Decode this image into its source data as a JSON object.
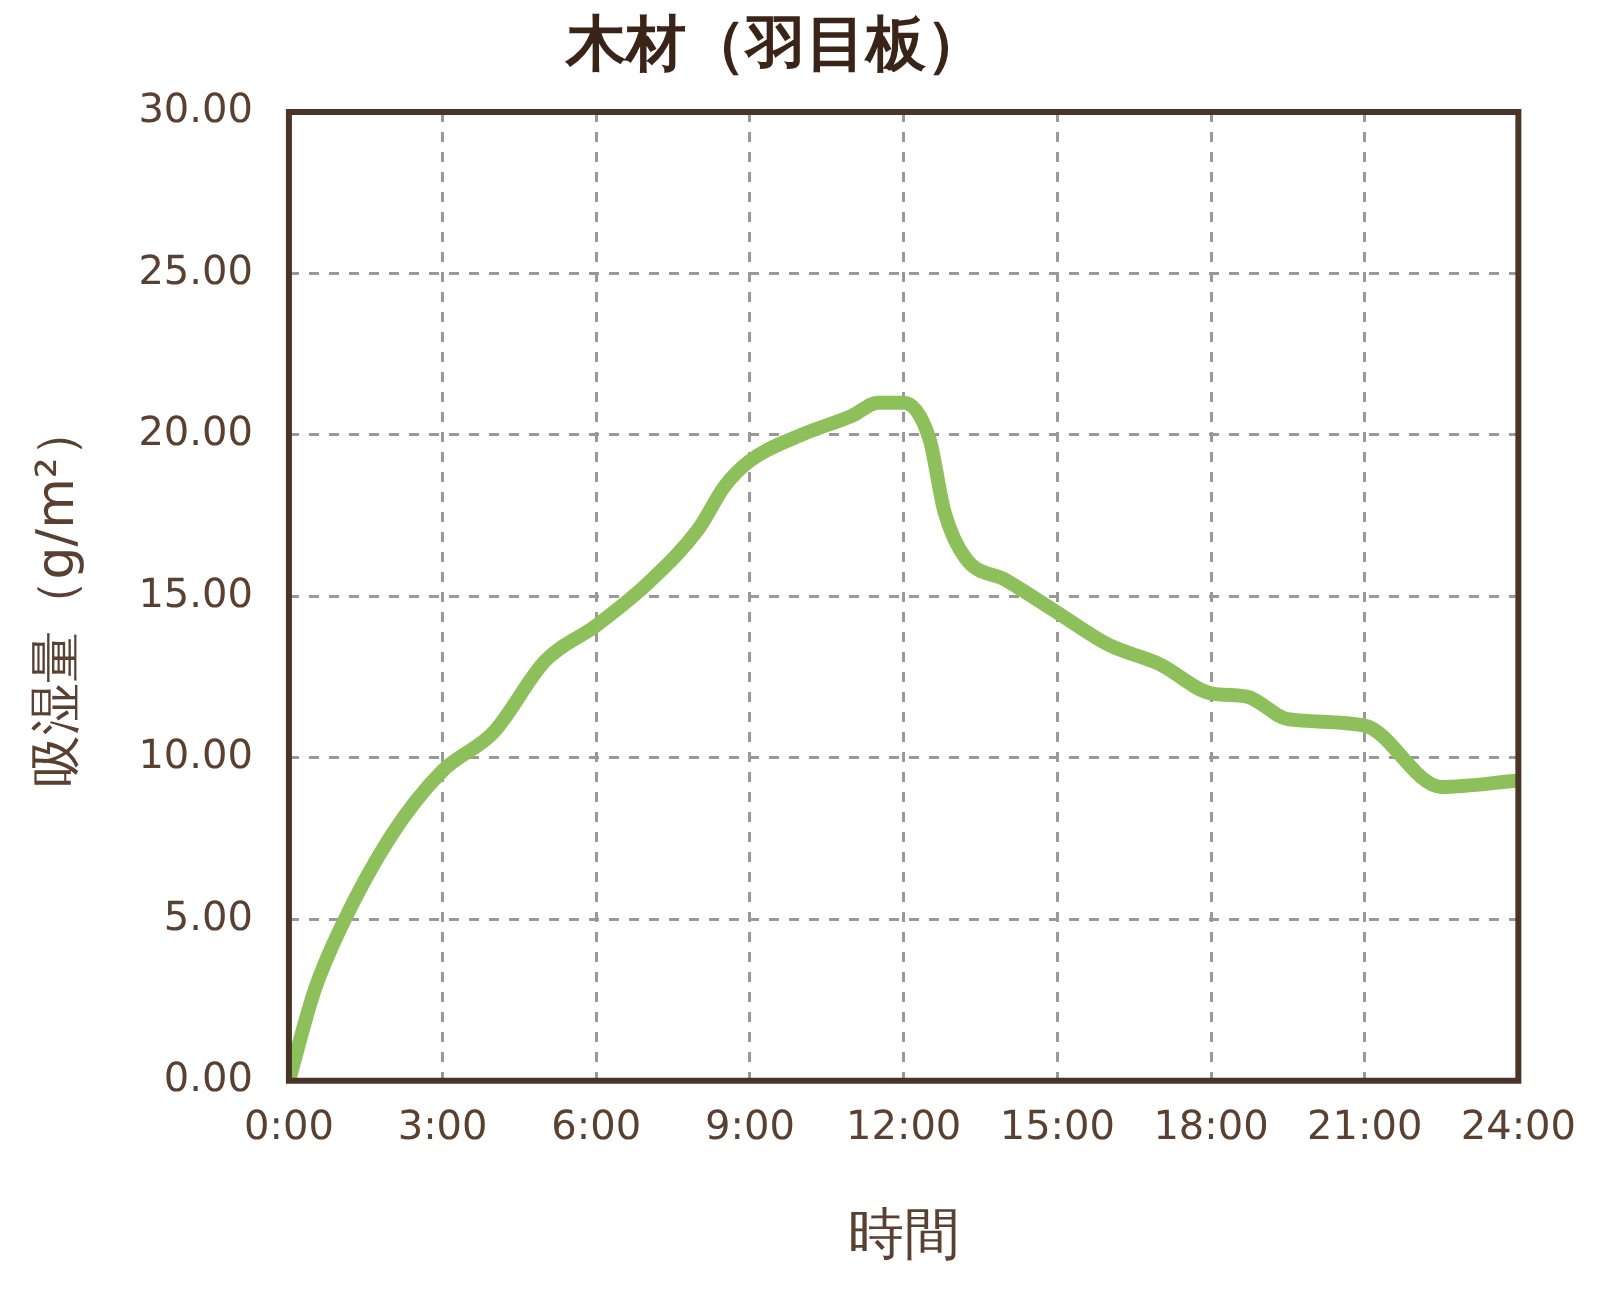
{
  "chart_data": {
    "type": "line",
    "title": "木材（羽目板）",
    "xlabel": "時間",
    "ylabel": "吸湿量（g/m²）",
    "x": [
      0,
      0.5,
      1,
      2,
      3,
      4,
      5,
      6,
      7,
      8,
      8.5,
      9,
      10,
      11,
      11.5,
      12,
      12.5,
      12.8,
      13.2,
      14,
      15,
      16,
      17,
      18,
      18.7,
      19.5,
      21,
      22.5,
      24
    ],
    "series": [
      {
        "color": "#8dc05a",
        "values": [
          0,
          2.8,
          4.7,
          7.6,
          9.6,
          10.8,
          13.0,
          14.1,
          15.4,
          17.1,
          18.4,
          19.2,
          20.0,
          20.6,
          21.0,
          21.0,
          19.9,
          17.6,
          16.2,
          15.5,
          14.5,
          13.5,
          12.9,
          12.0,
          11.9,
          11.2,
          11.0,
          9.1,
          9.3
        ]
      }
    ],
    "xlim": [
      0,
      24
    ],
    "ylim": [
      0,
      30
    ],
    "xticks": [
      {
        "value": 0,
        "label": "0:00"
      },
      {
        "value": 3,
        "label": "3:00"
      },
      {
        "value": 6,
        "label": "6:00"
      },
      {
        "value": 9,
        "label": "9:00"
      },
      {
        "value": 12,
        "label": "12:00"
      },
      {
        "value": 15,
        "label": "15:00"
      },
      {
        "value": 18,
        "label": "18:00"
      },
      {
        "value": 21,
        "label": "21:00"
      },
      {
        "value": 24,
        "label": "24:00"
      }
    ],
    "yticks": [
      {
        "value": 0,
        "label": "0.00"
      },
      {
        "value": 5,
        "label": "5.00"
      },
      {
        "value": 10,
        "label": "10.00"
      },
      {
        "value": 15,
        "label": "15.00"
      },
      {
        "value": 20,
        "label": "20.00"
      },
      {
        "value": 25,
        "label": "25.00"
      },
      {
        "value": 30,
        "label": "30.00"
      }
    ],
    "grid": true,
    "legend": false,
    "marker": "none",
    "line_style": "solid"
  }
}
